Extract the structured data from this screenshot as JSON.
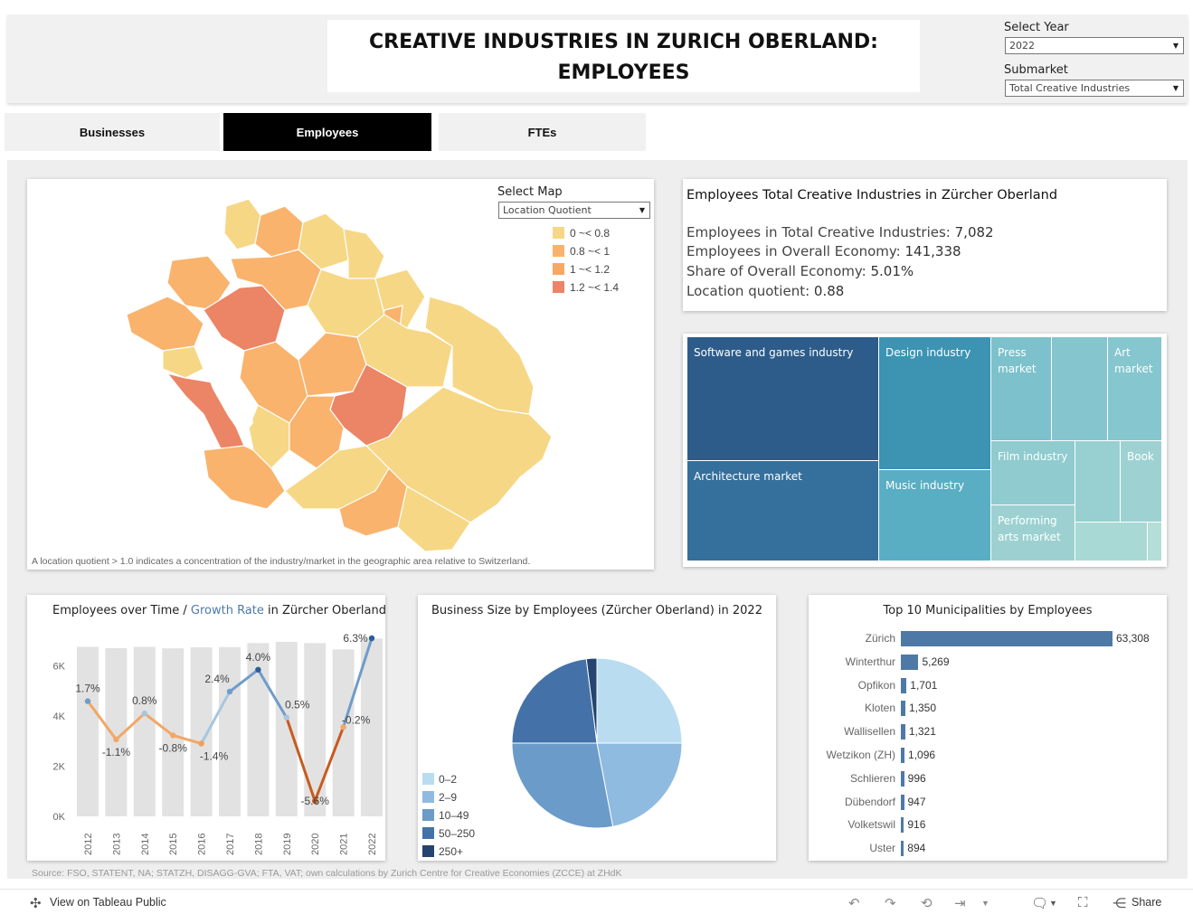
{
  "header": {
    "title_line1": "CREATIVE INDUSTRIES IN ZURICH OBERLAND:",
    "title_line2": "EMPLOYEES",
    "year_label": "Select Year",
    "year_value": "2022",
    "submarket_label": "Submarket",
    "submarket_value": "Total Creative Industries"
  },
  "tabs": [
    {
      "label": "Businesses",
      "active": false
    },
    {
      "label": "Employees",
      "active": true
    },
    {
      "label": "FTEs",
      "active": false
    }
  ],
  "map": {
    "select_label": "Select Map",
    "select_value": "Location Quotient",
    "legend": [
      {
        "label": "0 ~< 0.8",
        "color": "#f6d785"
      },
      {
        "label": "0.8 ~< 1",
        "color": "#f9b36d"
      },
      {
        "label": "1 ~< 1.2",
        "color": "#f7a862"
      },
      {
        "label": "1.2 ~< 1.4",
        "color": "#ec8466"
      }
    ],
    "note": "A location quotient > 1.0 indicates a concentration of the industry/market in the geographic area relative to Switzerland."
  },
  "kpi": {
    "title": "Employees Total Creative Industries in Zürcher Oberland",
    "rows": [
      {
        "label": "Employees in Total Creative Industries:",
        "value": "7,082"
      },
      {
        "label": "Employees in Overall Economy:",
        "value": "141,338"
      },
      {
        "label": "Share of Overall Economy:",
        "value": "5.01%"
      },
      {
        "label": "Location quotient:",
        "value": "0.88"
      }
    ]
  },
  "treemap": {
    "software": "Software and games industry",
    "architecture": "Architecture market",
    "design": "Design industry",
    "music": "Music industry",
    "press": "Press market",
    "art": "Art market",
    "film": "Film industry",
    "book": "Book",
    "performing": "Performing arts market"
  },
  "chart_titles": {
    "time_prefix": "Employees over Time / ",
    "time_growth": "Growth Rate",
    "time_suffix": " in Zürcher Oberland",
    "pie": "Business Size by Employees (Zürcher Oberland) in 2022",
    "bars": "Top 10 Municipalities by Employees"
  },
  "chart_data": [
    {
      "type": "bar",
      "title": "Employees over Time / Growth Rate in Zürcher Oberland",
      "categories": [
        "2012",
        "2013",
        "2014",
        "2015",
        "2016",
        "2017",
        "2018",
        "2019",
        "2020",
        "2021",
        "2022"
      ],
      "series": [
        {
          "name": "Employees",
          "values": [
            6750,
            6700,
            6750,
            6690,
            6730,
            6740,
            6900,
            6950,
            6900,
            6650,
            7082
          ]
        },
        {
          "name": "Growth Rate",
          "values": [
            1.7,
            -1.1,
            0.8,
            -0.8,
            -1.4,
            2.4,
            4.0,
            0.5,
            -5.6,
            -0.2,
            6.3
          ]
        }
      ],
      "growth_labels": [
        "1.7%",
        "-1.1%",
        "0.8%",
        "-0.8%",
        "-1.4%",
        "2.4%",
        "4.0%",
        "0.5%",
        "-5.6%",
        "-0.2%",
        "6.3%"
      ],
      "y_ticks": [
        "0K",
        "2K",
        "4K",
        "6K"
      ],
      "ylim": [
        0,
        7200
      ]
    },
    {
      "type": "pie",
      "title": "Business Size by Employees (Zürcher Oberland) in 2022",
      "categories": [
        "0–2",
        "2–9",
        "10–49",
        "50–250",
        "250+"
      ],
      "values": [
        25,
        22,
        28,
        23,
        2
      ],
      "colors": [
        "#b9dcf0",
        "#8fbbe0",
        "#6a9bc9",
        "#4472a8",
        "#25446f"
      ]
    },
    {
      "type": "bar",
      "title": "Top 10 Municipalities by Employees",
      "categories": [
        "Zürich",
        "Winterthur",
        "Opfikon",
        "Kloten",
        "Wallisellen",
        "Wetzikon (ZH)",
        "Schlieren",
        "Dübendorf",
        "Volketswil",
        "Uster"
      ],
      "values": [
        63308,
        5269,
        1701,
        1350,
        1321,
        1096,
        996,
        947,
        916,
        894
      ],
      "value_labels": [
        "63,308",
        "5,269",
        "1,701",
        "1,350",
        "1,321",
        "1,096",
        "996",
        "947",
        "916",
        "894"
      ]
    }
  ],
  "footer": {
    "source": "Source: FSO, STATENT, NA; STATZH, DISAGG-GVA; FTA, VAT; own calculations by Zurich Centre for Creative Economies (ZCCE) at ZHdK",
    "view_label": "View on Tableau Public",
    "share_label": "Share"
  }
}
